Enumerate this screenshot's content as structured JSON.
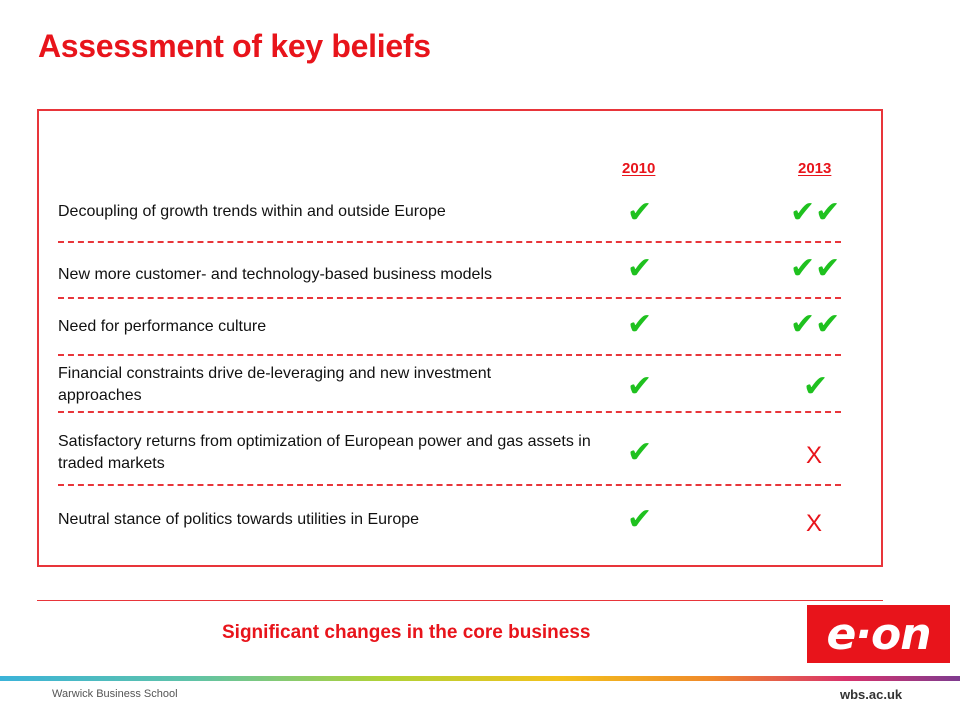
{
  "slide": {
    "title": "Assessment of key beliefs",
    "column_headers": {
      "y2010": "2010",
      "y2013": "2013"
    },
    "rows": [
      {
        "label": "Decoupling of growth trends within and outside Europe",
        "y2010": "✔",
        "y2013": "✔✔"
      },
      {
        "label": "New more customer- and technology-based business models",
        "y2010": "✔",
        "y2013": "✔✔"
      },
      {
        "label": "Need for performance culture",
        "y2010": "✔",
        "y2013": "✔✔"
      },
      {
        "label": "Financial constraints drive de-leveraging and new investment approaches",
        "y2010": "✔",
        "y2013": "✔"
      },
      {
        "label": "Satisfactory returns from optimization of European power and gas assets in traded markets",
        "y2010": "✔",
        "y2013": "X"
      },
      {
        "label": "Neutral stance of politics towards utilities in Europe",
        "y2010": "✔",
        "y2013": "X"
      }
    ],
    "summary": "Significant changes in the core business"
  },
  "logo": {
    "text": "e·on",
    "color": "#e8141b"
  },
  "footer": {
    "school": "Warwick Business School",
    "site": "wbs.ac.uk"
  },
  "colors": {
    "accent": "#e8141b",
    "check": "#1fc11f"
  }
}
